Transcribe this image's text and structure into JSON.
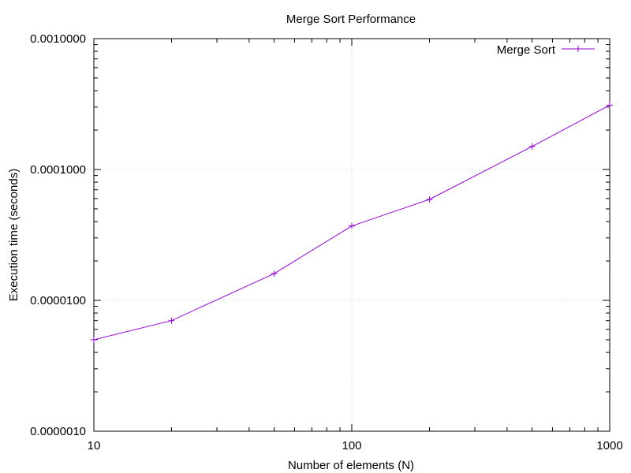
{
  "chart_data": {
    "type": "line",
    "title": "Merge Sort Performance",
    "xlabel": "Number of elements (N)",
    "ylabel": "Execution time (seconds)",
    "x_scale": "log",
    "y_scale": "log",
    "xlim": [
      10,
      1000
    ],
    "ylim": [
      1e-06,
      0.001
    ],
    "x_ticks": [
      {
        "value": 10,
        "label": "10"
      },
      {
        "value": 100,
        "label": "100"
      },
      {
        "value": 1000,
        "label": "1000"
      }
    ],
    "y_ticks": [
      {
        "value": 1e-06,
        "label": "0.0000010"
      },
      {
        "value": 1e-05,
        "label": "0.0000100"
      },
      {
        "value": 0.0001,
        "label": "0.0001000"
      },
      {
        "value": 0.001,
        "label": "0.0010000"
      }
    ],
    "grid": true,
    "legend_position": "top-right",
    "series": [
      {
        "name": "Merge Sort",
        "color": "#9400d3",
        "marker": "plus",
        "x": [
          10,
          20,
          50,
          100,
          200,
          500,
          1000
        ],
        "y": [
          5e-06,
          7e-06,
          1.6e-05,
          3.7e-05,
          5.9e-05,
          0.00015,
          0.00031
        ]
      }
    ]
  }
}
